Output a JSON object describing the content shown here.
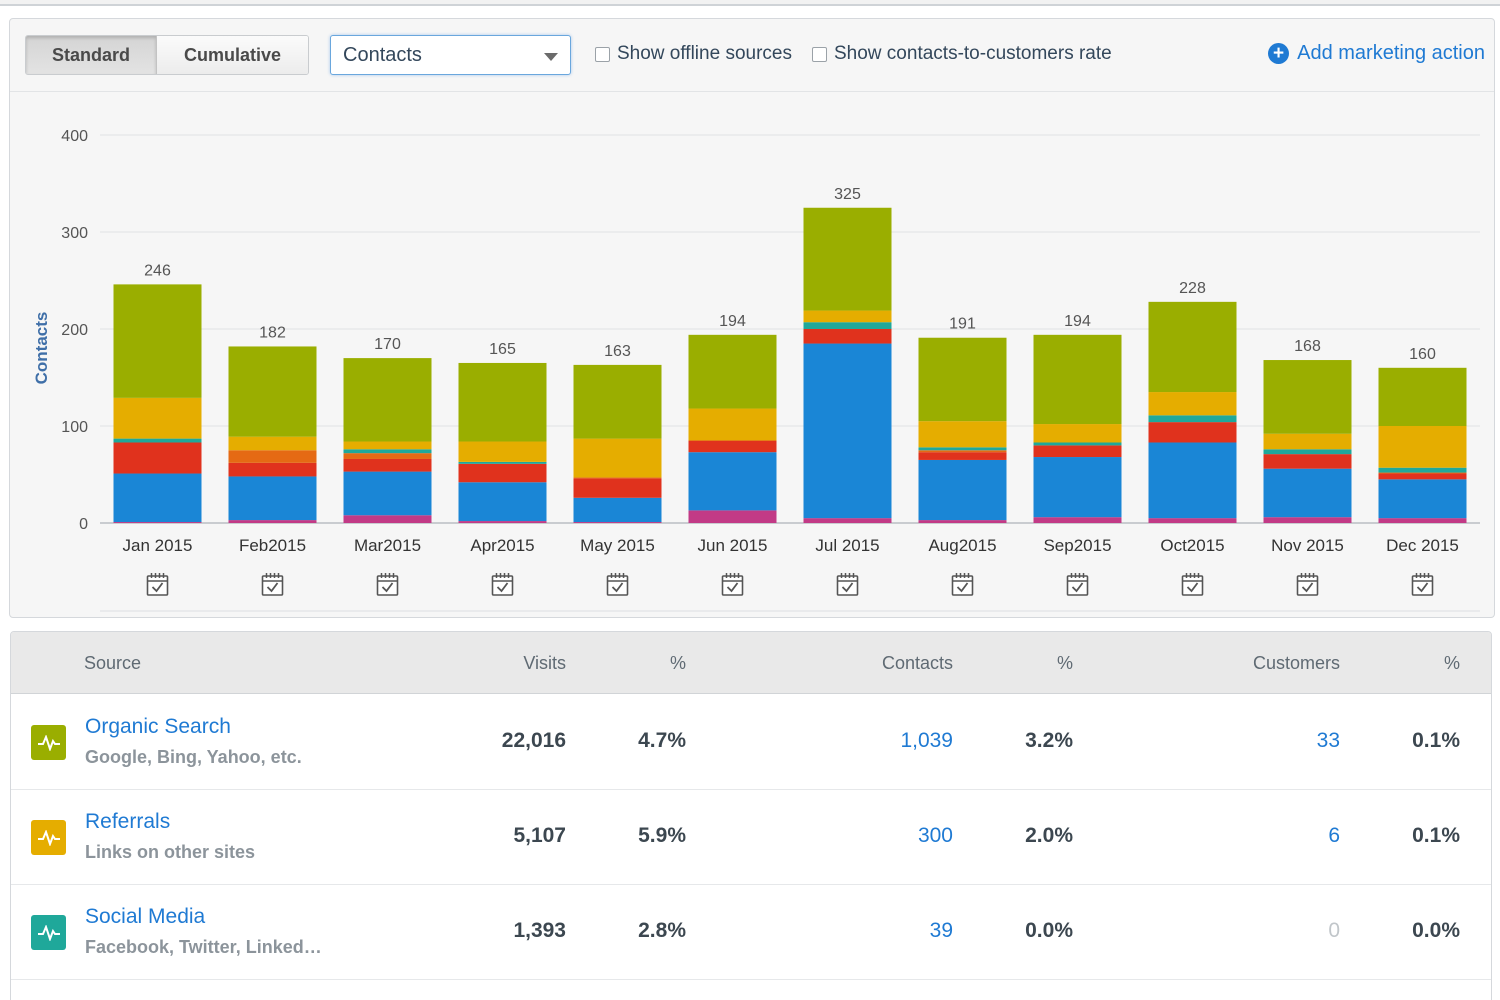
{
  "toolbar": {
    "standard_label": "Standard",
    "cumulative_label": "Cumulative",
    "metric_select": "Contacts",
    "offline_label": "Show offline sources",
    "rate_label": "Show contacts-to-customers rate",
    "add_action_label": "Add marketing action"
  },
  "colors": {
    "organic": "#9aae00",
    "referrals": "#e5ad00",
    "social": "#1fa89a",
    "paid": "#e56a14",
    "email": "#e0321d",
    "direct": "#1a86d6",
    "other": "#c23a86",
    "link": "#1f7ad3"
  },
  "chart_data": {
    "type": "bar",
    "stacked": true,
    "ylabel": "Contacts",
    "ylim": [
      0,
      400
    ],
    "yticks": [
      0,
      100,
      200,
      300,
      400
    ],
    "grid": true,
    "categories": [
      "Jan 2015",
      "Feb2015",
      "Mar2015",
      "Apr2015",
      "May 2015",
      "Jun 2015",
      "Jul 2015",
      "Aug2015",
      "Sep2015",
      "Oct2015",
      "Nov 2015",
      "Dec 2015"
    ],
    "totals": [
      246,
      182,
      170,
      165,
      163,
      194,
      325,
      191,
      194,
      228,
      168,
      160
    ],
    "series": [
      {
        "color": "#c23a86",
        "values": [
          1,
          3,
          8,
          2,
          1,
          13,
          5,
          3,
          6,
          5,
          6,
          5
        ]
      },
      {
        "color": "#1a86d6",
        "values": [
          50,
          45,
          45,
          40,
          25,
          60,
          180,
          62,
          62,
          78,
          50,
          40
        ]
      },
      {
        "color": "#e0321d",
        "values": [
          32,
          14,
          13,
          19,
          20,
          12,
          15,
          8,
          12,
          21,
          15,
          6
        ]
      },
      {
        "color": "#e56a14",
        "values": [
          0,
          13,
          6,
          0,
          1,
          0,
          0,
          2,
          0,
          0,
          0,
          1
        ]
      },
      {
        "color": "#1fa89a",
        "values": [
          4,
          0,
          4,
          2,
          0,
          0,
          7,
          3,
          3,
          7,
          5,
          5
        ]
      },
      {
        "color": "#e5ad00",
        "values": [
          42,
          14,
          8,
          21,
          40,
          33,
          12,
          27,
          19,
          24,
          16,
          43
        ]
      },
      {
        "color": "#9aae00",
        "values": [
          117,
          93,
          86,
          81,
          76,
          76,
          106,
          86,
          92,
          93,
          76,
          60
        ]
      }
    ]
  },
  "table": {
    "headers": {
      "source": "Source",
      "visits": "Visits",
      "visits_pct": "%",
      "contacts": "Contacts",
      "contacts_pct": "%",
      "customers": "Customers",
      "customers_pct": "%"
    },
    "rows": [
      {
        "name": "Organic Search",
        "desc": "Google, Bing, Yahoo, etc.",
        "icon": "activity-icon",
        "visits": "22,016",
        "visits_pct": "4.7%",
        "contacts": "1,039",
        "contacts_pct": "3.2%",
        "customers": "33",
        "customers_pct": "0.1%"
      },
      {
        "name": "Referrals",
        "desc": "Links on other sites",
        "icon": "activity-icon",
        "visits": "5,107",
        "visits_pct": "5.9%",
        "contacts": "300",
        "contacts_pct": "2.0%",
        "customers": "6",
        "customers_pct": "0.1%"
      },
      {
        "name": "Social Media",
        "desc": "Facebook, Twitter, Linked…",
        "icon": "activity-icon",
        "visits": "1,393",
        "visits_pct": "2.8%",
        "contacts": "39",
        "contacts_pct": "0.0%",
        "customers": "0",
        "customers_pct": "0.0%"
      }
    ]
  }
}
